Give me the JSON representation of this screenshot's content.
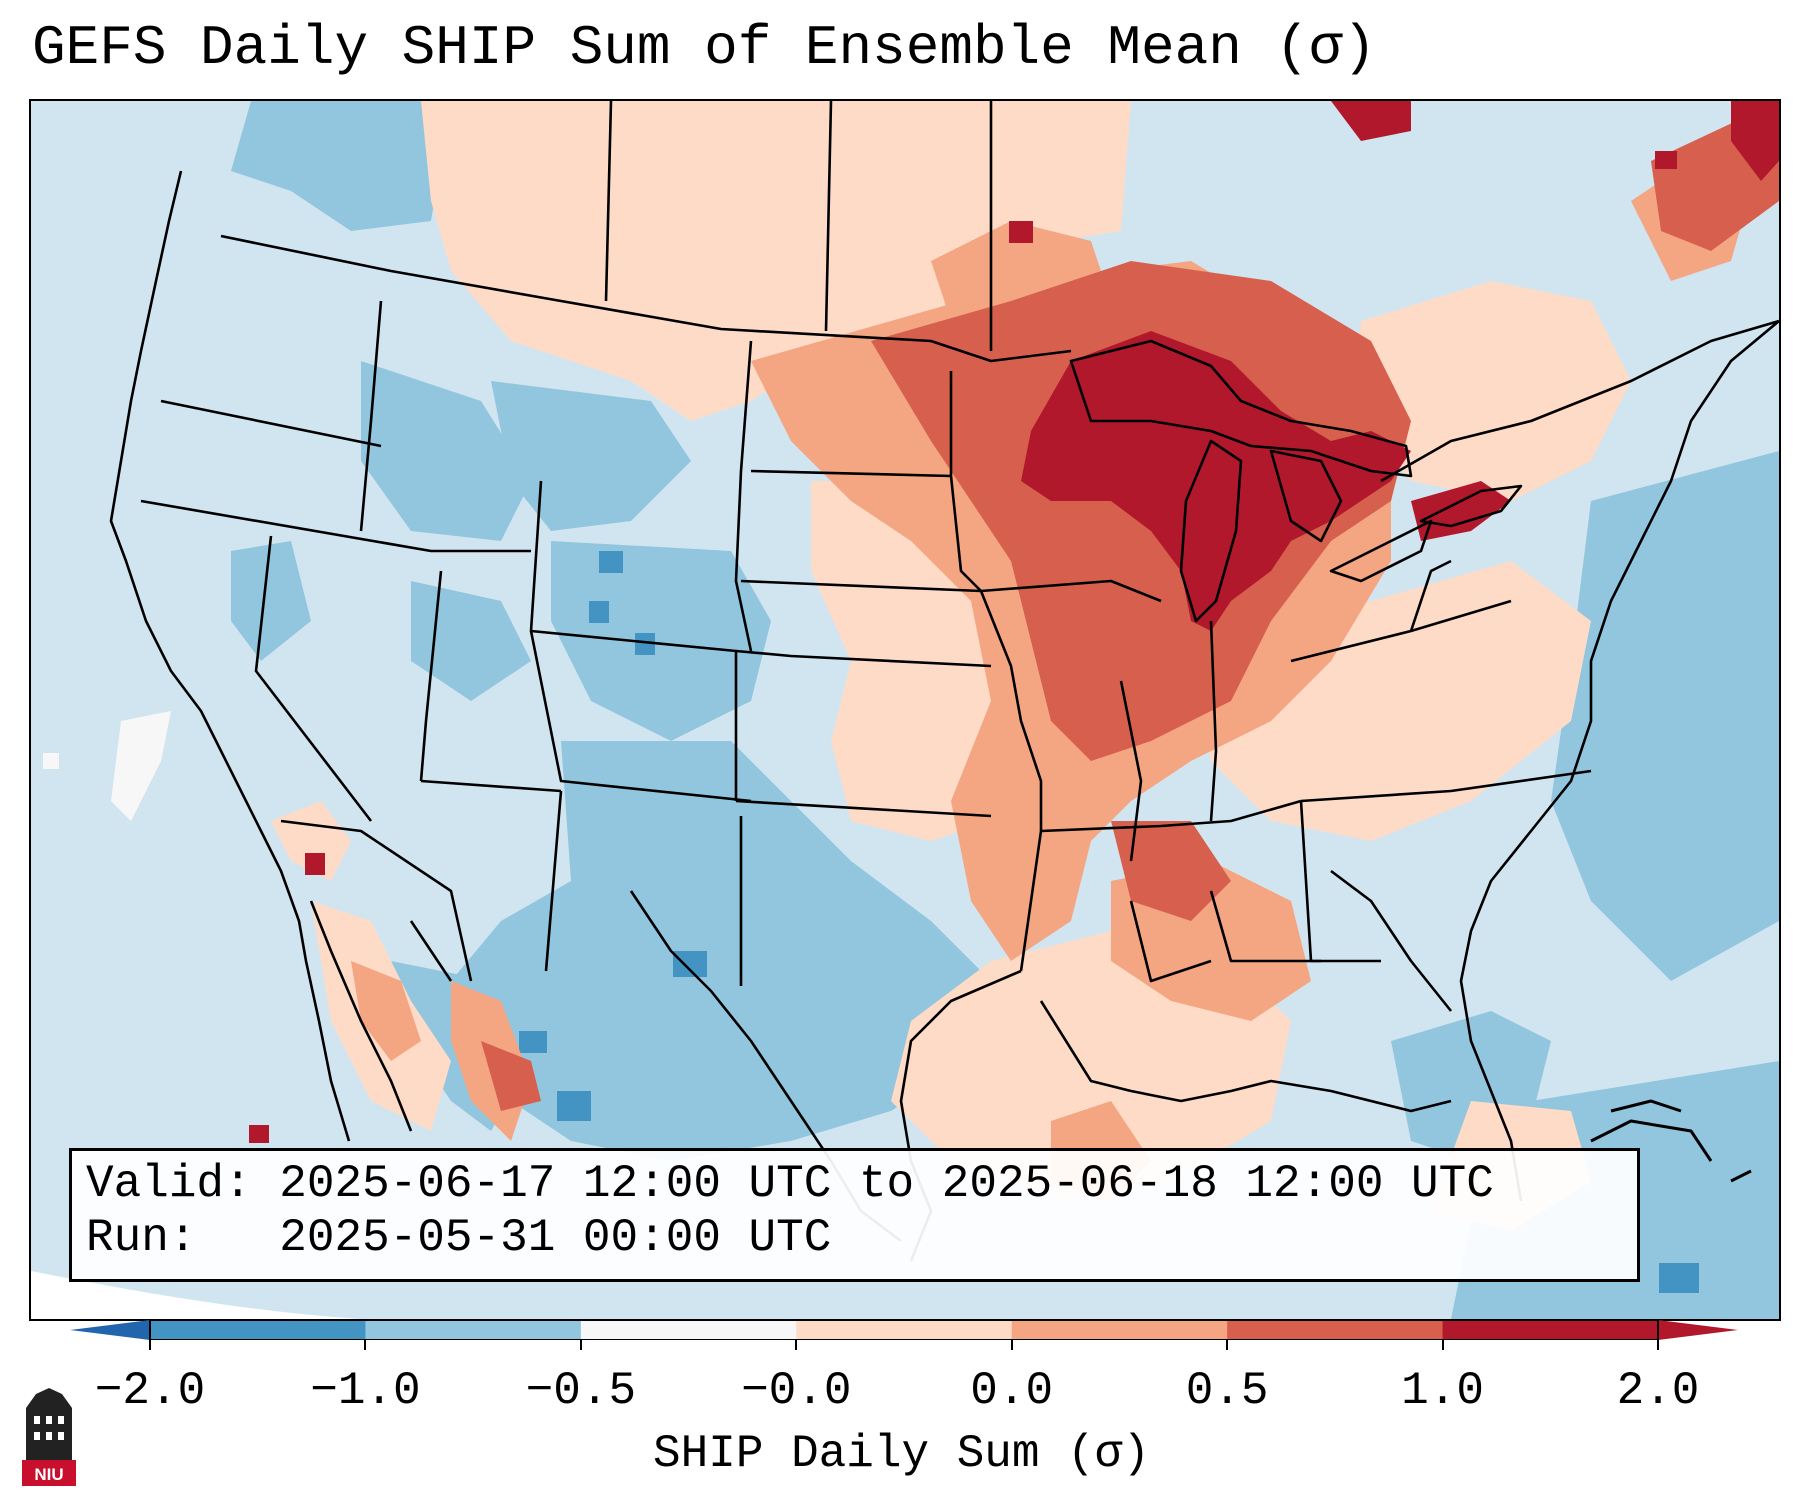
{
  "title": "GEFS Daily SHIP Sum of Ensemble Mean (σ)",
  "info": {
    "valid_label": "Valid:",
    "valid_value": "2025-06-17 12:00 UTC to 2025-06-18 12:00 UTC",
    "run_label": "Run:",
    "run_value": "2025-05-31 00:00 UTC"
  },
  "colorbar": {
    "label": "SHIP Daily Sum (σ)",
    "ticks": [
      "−2.0",
      "−1.0",
      "−0.5",
      "−0.0",
      "0.0",
      "0.5",
      "1.0",
      "2.0"
    ],
    "colors": [
      "#4393c3",
      "#92c5de",
      "#d1e5f0",
      "#f7f7f7",
      "#fddbc7",
      "#f4a582",
      "#d6604d",
      "#b2182b"
    ],
    "extend_low_color": "#2166ac",
    "extend_high_color": "#b2182b"
  },
  "logo": {
    "text": "NIU"
  }
}
